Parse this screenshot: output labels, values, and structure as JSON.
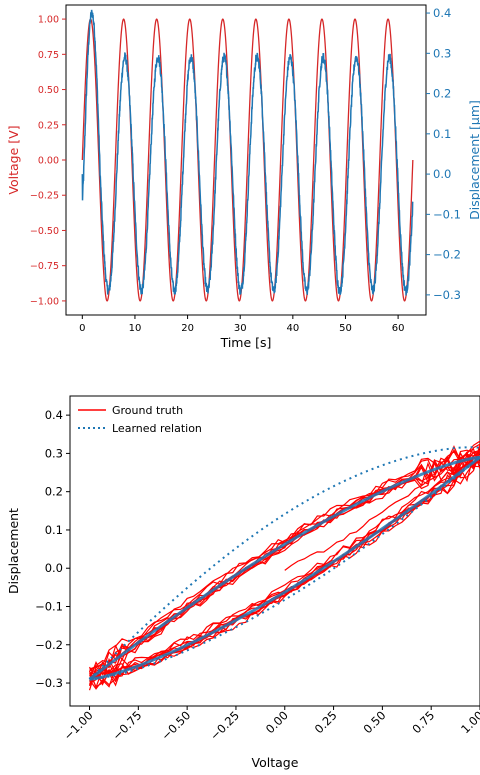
{
  "chart_data": [
    {
      "type": "line",
      "xlabel": "Time [s]",
      "ylabel_left": "Voltage [V]",
      "ylabel_right": "Displacement [µm]",
      "xlim": [
        -3.1,
        65.3
      ],
      "ylim_left": [
        -1.1,
        1.1
      ],
      "ylim_right": [
        -0.35,
        0.42
      ],
      "xticks": [
        0,
        10,
        20,
        30,
        40,
        50,
        60
      ],
      "yticks_left": [
        1.0,
        0.75,
        0.5,
        0.25,
        0.0,
        -0.25,
        -0.5,
        -0.75,
        -1.0
      ],
      "yticks_right": [
        0.4,
        0.3,
        0.2,
        0.1,
        0.0,
        -0.1,
        -0.2,
        -0.3
      ],
      "left_axis_color": "#d62728",
      "right_axis_color": "#1f77b4",
      "grid": false,
      "series": [
        {
          "axis": "left",
          "color": "#d62728",
          "period": 6.28,
          "amplitude": 1.0,
          "t_end": 62.8
        },
        {
          "axis": "right",
          "color": "#1f77b4",
          "period": 6.28,
          "t_end": 62.8,
          "first_peak": 0.4,
          "peak": 0.29,
          "trough": -0.29
        }
      ]
    },
    {
      "type": "line",
      "xlabel": "Voltage",
      "ylabel": "Displacement",
      "xlim": [
        -1.1,
        1.0
      ],
      "ylim": [
        -0.36,
        0.45
      ],
      "xticks": [
        -1.0,
        -0.75,
        -0.5,
        -0.25,
        0.0,
        0.25,
        0.5,
        0.75,
        1.0
      ],
      "yticks": [
        0.4,
        0.3,
        0.2,
        0.1,
        0.0,
        -0.1,
        -0.2,
        -0.3
      ],
      "legend_position": "top-left",
      "grid": false,
      "series": [
        {
          "name": "Ground truth",
          "color": "#ff0000",
          "style": "solid"
        },
        {
          "name": "Learned relation",
          "color": "#1f77b4",
          "style": "dotted"
        }
      ],
      "loop": {
        "x_range": [
          -1.0,
          1.0
        ],
        "y_range": [
          -0.29,
          0.29
        ],
        "learned_upper_peak": 0.37
      }
    }
  ]
}
